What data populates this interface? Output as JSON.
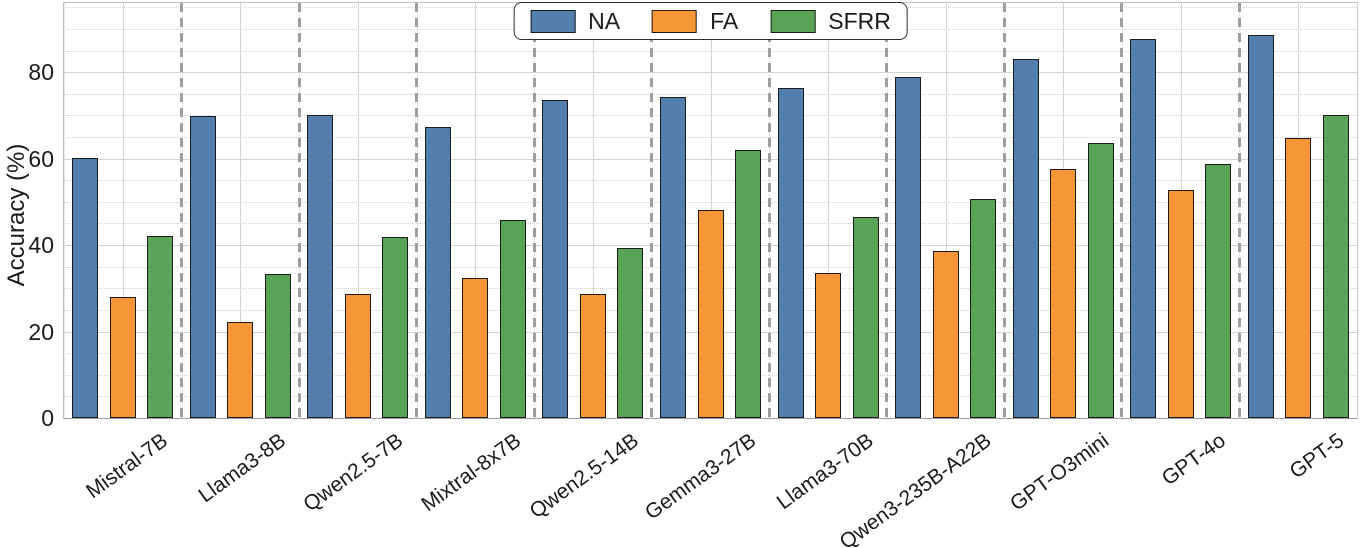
{
  "chart_data": {
    "type": "bar",
    "title": "",
    "xlabel": "",
    "ylabel": "Accuracy (%)",
    "ylim": [
      0,
      96
    ],
    "yticks": [
      "0",
      "20",
      "40",
      "60",
      "80"
    ],
    "ytick_values": [
      0,
      20,
      40,
      60,
      80
    ],
    "minor_grid_step": 5,
    "grid": "major solid gridlines (x and y) with dotted minor gridlines",
    "group_separators": "thick gray dashed vertical lines between model groups",
    "legend": {
      "position": "top-center",
      "labels": [
        "NA",
        "FA",
        "SFRR"
      ]
    },
    "categories": [
      "Mistral-7B",
      "Llama3-8B",
      "Qwen2.5-7B",
      "Mixtral-8x7B",
      "Qwen2.5-14B",
      "Gemma3-27B",
      "Llama3-70B",
      "Qwen3-235B-A22B",
      "GPT-O3mini",
      "GPT-4o",
      "GPT-5"
    ],
    "series": [
      {
        "name": "NA",
        "color": "#527fac",
        "values": [
          60.1,
          69.8,
          70.2,
          67.4,
          73.6,
          74.3,
          76.4,
          79.0,
          83.1,
          87.6,
          88.5
        ]
      },
      {
        "name": "FA",
        "color": "#f79636",
        "values": [
          28.0,
          22.3,
          28.6,
          32.5,
          28.7,
          48.1,
          33.6,
          38.6,
          57.7,
          52.8,
          64.7
        ]
      },
      {
        "name": "SFRR",
        "color": "#5aa255",
        "values": [
          42.1,
          33.2,
          41.9,
          45.8,
          39.4,
          62.0,
          46.4,
          50.6,
          63.7,
          58.7,
          70.2
        ]
      }
    ],
    "style_colors": {
      "bar_edge": "#1c1c1c",
      "separator": "#9e9e9e",
      "major_grid": "#d4d4d4",
      "minor_grid": "#d2d2d2",
      "spine": "#c2c2c2",
      "text": "#1b1b1b",
      "background": "#ffffff"
    }
  }
}
